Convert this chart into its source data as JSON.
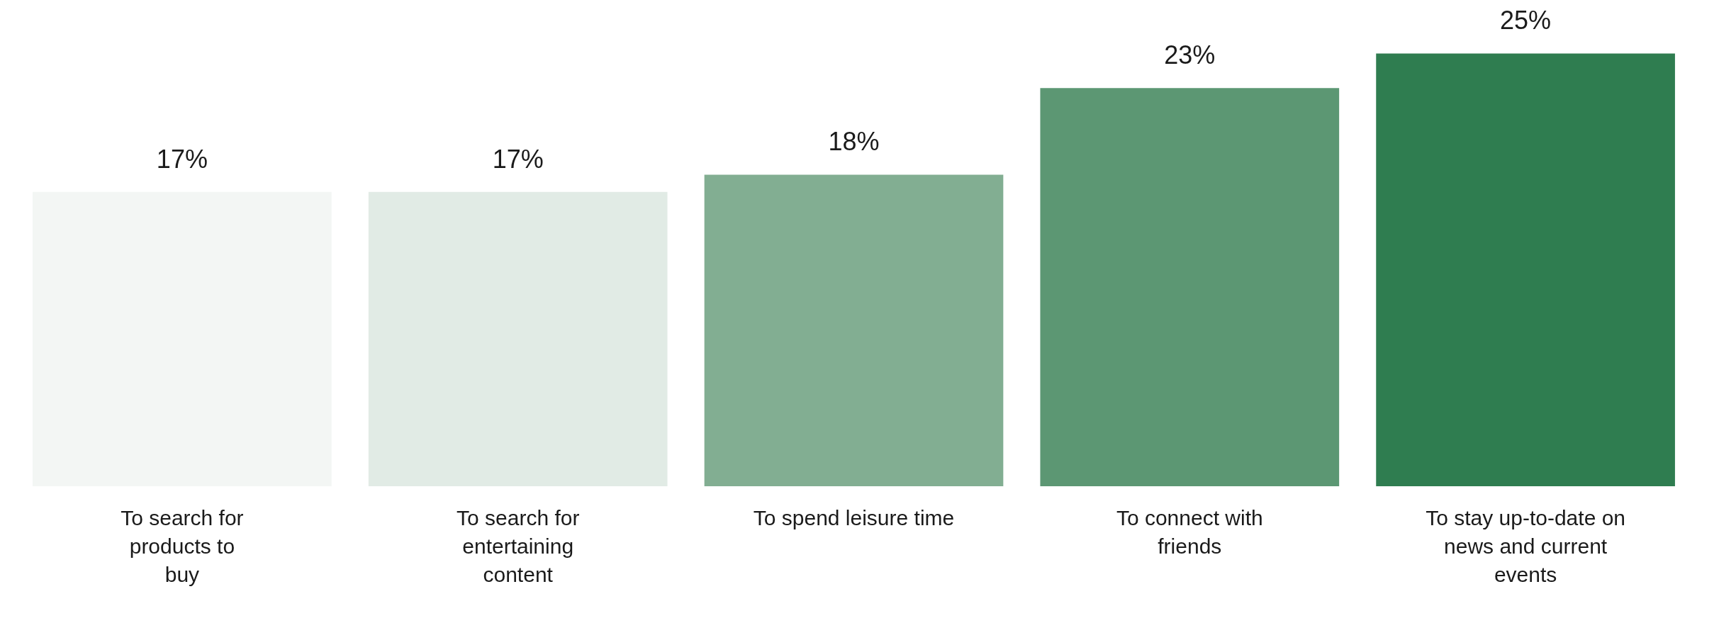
{
  "chart_data": {
    "type": "bar",
    "categories": [
      "To search for products to buy",
      "To search for entertaining content",
      "To spend leisure time",
      "To connect with friends",
      "To stay up-to-date on news and current events"
    ],
    "values": [
      17,
      17,
      18,
      23,
      25
    ],
    "colors": [
      "#f3f6f4",
      "#e1ebe5",
      "#82ae92",
      "#5c9773",
      "#2f7d50"
    ],
    "value_labels": [
      "17%",
      "17%",
      "18%",
      "23%",
      "25%"
    ],
    "grid": false
  }
}
